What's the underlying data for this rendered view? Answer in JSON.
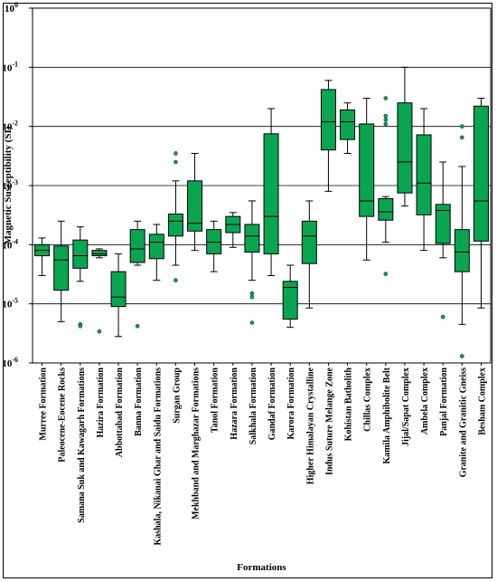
{
  "chart_data": {
    "type": "box",
    "xlabel": "Formations",
    "ylabel": "Magnetic Susceptibility (SI)",
    "yscale": "log",
    "ylim": [
      1e-06,
      1
    ],
    "y_ticks": [
      {
        "value": 1,
        "base": "10",
        "exp": "0"
      },
      {
        "value": 0.1,
        "base": "10",
        "exp": "-1"
      },
      {
        "value": 0.01,
        "base": "10",
        "exp": "-2"
      },
      {
        "value": 0.001,
        "base": "10",
        "exp": "-3"
      },
      {
        "value": 0.0001,
        "base": "10",
        "exp": "-4"
      },
      {
        "value": 1e-05,
        "base": "10",
        "exp": "-5"
      },
      {
        "value": 1e-06,
        "base": "10",
        "exp": "-6"
      }
    ],
    "gridlines": "horizontal at decades",
    "box_color": "#0aa550",
    "categories": [
      "Murree Formation",
      "Paleocene-Eocene Rocks",
      "Samana Suk and Kawagarh Formations",
      "Hazira Formation",
      "Abbottabad Formation",
      "Banna Formation",
      "Kashala, Nikanai Ghar and Saidu Formations",
      "Surgan Group",
      "Mekhband and Marghazar Formations",
      "Tanol Formation",
      "Hazara Formation",
      "Salkhala Formation",
      "Gandaf Formation",
      "Karora Formation",
      "Higher Himalayan Crystalline",
      "Indus Suture Melange Zone",
      "Kohistan Batholith",
      "Chillas Complex",
      "Kamila Amphibolite Belt",
      "Jijal/Sapat Complex",
      "Ambela Complex",
      "Panjal Formation",
      "Granite and Granitic Gneiss",
      "Besham Complex"
    ],
    "boxes": [
      {
        "min": 3e-05,
        "q1": 6.5e-05,
        "median": 8e-05,
        "q3": 0.0001,
        "max": 0.00013,
        "outliers": []
      },
      {
        "min": 5e-06,
        "q1": 1.7e-05,
        "median": 5.5e-05,
        "q3": 9.5e-05,
        "max": 0.00025,
        "outliers": []
      },
      {
        "min": 2.4e-05,
        "q1": 4e-05,
        "median": 6.5e-05,
        "q3": 0.00012,
        "max": 0.0002,
        "outliers": [
          4.5e-06,
          4.2e-06
        ]
      },
      {
        "min": 6e-05,
        "q1": 6.5e-05,
        "median": 7e-05,
        "q3": 8e-05,
        "max": 8.5e-05,
        "outliers": [
          3.4e-06
        ]
      },
      {
        "min": 2.8e-06,
        "q1": 9e-06,
        "median": 1.3e-05,
        "q3": 3.5e-05,
        "max": 7e-05,
        "outliers": []
      },
      {
        "min": 4.5e-05,
        "q1": 5e-05,
        "median": 8.5e-05,
        "q3": 0.00018,
        "max": 0.00025,
        "outliers": [
          4.2e-06
        ]
      },
      {
        "min": 2.5e-05,
        "q1": 5.8e-05,
        "median": 0.00011,
        "q3": 0.00015,
        "max": 0.00022,
        "outliers": []
      },
      {
        "min": 4.5e-05,
        "q1": 0.00014,
        "median": 0.00025,
        "q3": 0.00033,
        "max": 0.0012,
        "outliers": [
          0.0035,
          0.0025,
          2.5e-05
        ]
      },
      {
        "min": 8e-05,
        "q1": 0.00017,
        "median": 0.00023,
        "q3": 0.0012,
        "max": 0.0035,
        "outliers": []
      },
      {
        "min": 3.5e-05,
        "q1": 7e-05,
        "median": 0.00011,
        "q3": 0.00018,
        "max": 0.00025,
        "outliers": []
      },
      {
        "min": 9e-05,
        "q1": 0.00016,
        "median": 0.00022,
        "q3": 0.0003,
        "max": 0.00035,
        "outliers": []
      },
      {
        "min": 2.5e-05,
        "q1": 7.5e-05,
        "median": 0.00014,
        "q3": 0.00022,
        "max": 0.00055,
        "outliers": [
          1.5e-05,
          1.3e-05,
          4.8e-06
        ]
      },
      {
        "min": 3e-05,
        "q1": 7e-05,
        "median": 0.0003,
        "q3": 0.0075,
        "max": 0.02,
        "outliers": []
      },
      {
        "min": 4e-06,
        "q1": 5.5e-06,
        "median": 1.9e-05,
        "q3": 2.4e-05,
        "max": 4.5e-05,
        "outliers": []
      },
      {
        "min": 8.5e-06,
        "q1": 4.8e-05,
        "median": 0.00014,
        "q3": 0.00025,
        "max": 0.00055,
        "outliers": []
      },
      {
        "min": 0.0008,
        "q1": 0.004,
        "median": 0.012,
        "q3": 0.042,
        "max": 0.06,
        "outliers": []
      },
      {
        "min": 0.0035,
        "q1": 0.006,
        "median": 0.012,
        "q3": 0.019,
        "max": 0.025,
        "outliers": []
      },
      {
        "min": 5.5e-05,
        "q1": 0.0003,
        "median": 0.00055,
        "q3": 0.011,
        "max": 0.03,
        "outliers": []
      },
      {
        "min": 0.00011,
        "q1": 0.00026,
        "median": 0.00036,
        "q3": 0.0006,
        "max": 0.00065,
        "outliers": [
          0.03,
          0.015,
          0.013,
          0.011,
          3.2e-05
        ]
      },
      {
        "min": 0.00045,
        "q1": 0.00075,
        "median": 0.0025,
        "q3": 0.025,
        "max": 0.1,
        "outliers": []
      },
      {
        "min": 8e-05,
        "q1": 0.00032,
        "median": 0.0011,
        "q3": 0.0072,
        "max": 0.02,
        "outliers": []
      },
      {
        "min": 6e-05,
        "q1": 0.000105,
        "median": 0.00038,
        "q3": 0.00048,
        "max": 0.0025,
        "outliers": [
          6e-06
        ]
      },
      {
        "min": 4.5e-06,
        "q1": 3.5e-05,
        "median": 7.5e-05,
        "q3": 0.00018,
        "max": 0.0021,
        "outliers": [
          0.01,
          0.0065,
          1.3e-06
        ]
      },
      {
        "min": 8.5e-06,
        "q1": 0.000115,
        "median": 0.00055,
        "q3": 0.022,
        "max": 0.03,
        "outliers": []
      }
    ]
  }
}
